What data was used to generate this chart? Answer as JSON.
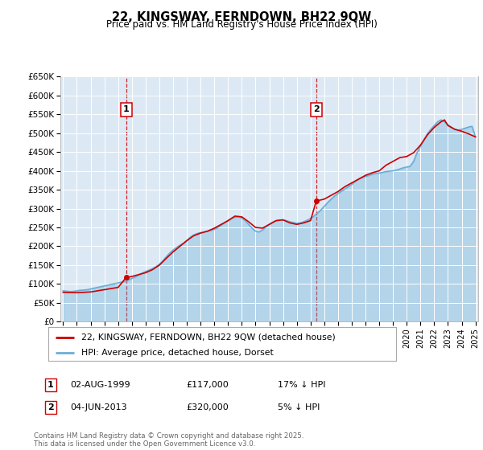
{
  "title": "22, KINGSWAY, FERNDOWN, BH22 9QW",
  "subtitle": "Price paid vs. HM Land Registry's House Price Index (HPI)",
  "ylabel_ticks": [
    "£0",
    "£50K",
    "£100K",
    "£150K",
    "£200K",
    "£250K",
    "£300K",
    "£350K",
    "£400K",
    "£450K",
    "£500K",
    "£550K",
    "£600K",
    "£650K"
  ],
  "ylim": [
    0,
    650000
  ],
  "ytick_values": [
    0,
    50000,
    100000,
    150000,
    200000,
    250000,
    300000,
    350000,
    400000,
    450000,
    500000,
    550000,
    600000,
    650000
  ],
  "xlim_years": [
    1995,
    2025
  ],
  "xtick_years": [
    1995,
    1996,
    1997,
    1998,
    1999,
    2000,
    2001,
    2002,
    2003,
    2004,
    2005,
    2006,
    2007,
    2008,
    2009,
    2010,
    2011,
    2012,
    2013,
    2014,
    2015,
    2016,
    2017,
    2018,
    2019,
    2020,
    2021,
    2022,
    2023,
    2024,
    2025
  ],
  "hpi_color": "#6baed6",
  "price_color": "#cc0000",
  "background_color": "#dce9f5",
  "grid_color": "#ffffff",
  "transaction1_year": 1999.58,
  "transaction1_price": 117000,
  "transaction1_label": "1",
  "transaction1_date": "02-AUG-1999",
  "transaction1_hpi_pct": "17% ↓ HPI",
  "transaction2_year": 2013.42,
  "transaction2_price": 320000,
  "transaction2_label": "2",
  "transaction2_date": "04-JUN-2013",
  "transaction2_hpi_pct": "5% ↓ HPI",
  "legend_price_label": "22, KINGSWAY, FERNDOWN, BH22 9QW (detached house)",
  "legend_hpi_label": "HPI: Average price, detached house, Dorset",
  "footer": "Contains HM Land Registry data © Crown copyright and database right 2025.\nThis data is licensed under the Open Government Licence v3.0.",
  "hpi_data": [
    [
      1995.0,
      82000
    ],
    [
      1995.25,
      81000
    ],
    [
      1995.5,
      80000
    ],
    [
      1995.75,
      80500
    ],
    [
      1996.0,
      82000
    ],
    [
      1996.25,
      83500
    ],
    [
      1996.5,
      84000
    ],
    [
      1996.75,
      85000
    ],
    [
      1997.0,
      87000
    ],
    [
      1997.25,
      89000
    ],
    [
      1997.5,
      91000
    ],
    [
      1997.75,
      93000
    ],
    [
      1998.0,
      95000
    ],
    [
      1998.25,
      97000
    ],
    [
      1998.5,
      99000
    ],
    [
      1998.75,
      101000
    ],
    [
      1999.0,
      103000
    ],
    [
      1999.25,
      105000
    ],
    [
      1999.5,
      107000
    ],
    [
      1999.75,
      111000
    ],
    [
      2000.0,
      115000
    ],
    [
      2000.25,
      119000
    ],
    [
      2000.5,
      124000
    ],
    [
      2000.75,
      129000
    ],
    [
      2001.0,
      133000
    ],
    [
      2001.25,
      137000
    ],
    [
      2001.5,
      141000
    ],
    [
      2001.75,
      146000
    ],
    [
      2002.0,
      152000
    ],
    [
      2002.25,
      161000
    ],
    [
      2002.5,
      172000
    ],
    [
      2002.75,
      182000
    ],
    [
      2003.0,
      190000
    ],
    [
      2003.25,
      197000
    ],
    [
      2003.5,
      203000
    ],
    [
      2003.75,
      208000
    ],
    [
      2004.0,
      215000
    ],
    [
      2004.25,
      224000
    ],
    [
      2004.5,
      230000
    ],
    [
      2004.75,
      234000
    ],
    [
      2005.0,
      236000
    ],
    [
      2005.25,
      238000
    ],
    [
      2005.5,
      240000
    ],
    [
      2005.75,
      242000
    ],
    [
      2006.0,
      245000
    ],
    [
      2006.25,
      250000
    ],
    [
      2006.5,
      256000
    ],
    [
      2006.75,
      262000
    ],
    [
      2007.0,
      268000
    ],
    [
      2007.25,
      274000
    ],
    [
      2007.5,
      277000
    ],
    [
      2007.75,
      278000
    ],
    [
      2008.0,
      275000
    ],
    [
      2008.25,
      268000
    ],
    [
      2008.5,
      258000
    ],
    [
      2008.75,
      248000
    ],
    [
      2009.0,
      240000
    ],
    [
      2009.25,
      238000
    ],
    [
      2009.5,
      243000
    ],
    [
      2009.75,
      252000
    ],
    [
      2010.0,
      258000
    ],
    [
      2010.25,
      264000
    ],
    [
      2010.5,
      268000
    ],
    [
      2010.75,
      270000
    ],
    [
      2011.0,
      270000
    ],
    [
      2011.25,
      268000
    ],
    [
      2011.5,
      265000
    ],
    [
      2011.75,
      263000
    ],
    [
      2012.0,
      261000
    ],
    [
      2012.25,
      262000
    ],
    [
      2012.5,
      265000
    ],
    [
      2012.75,
      269000
    ],
    [
      2013.0,
      274000
    ],
    [
      2013.25,
      280000
    ],
    [
      2013.5,
      288000
    ],
    [
      2013.75,
      296000
    ],
    [
      2014.0,
      306000
    ],
    [
      2014.25,
      316000
    ],
    [
      2014.5,
      325000
    ],
    [
      2014.75,
      333000
    ],
    [
      2015.0,
      340000
    ],
    [
      2015.25,
      346000
    ],
    [
      2015.5,
      352000
    ],
    [
      2015.75,
      358000
    ],
    [
      2016.0,
      364000
    ],
    [
      2016.25,
      372000
    ],
    [
      2016.5,
      378000
    ],
    [
      2016.75,
      382000
    ],
    [
      2017.0,
      385000
    ],
    [
      2017.25,
      388000
    ],
    [
      2017.5,
      391000
    ],
    [
      2017.75,
      393000
    ],
    [
      2018.0,
      394000
    ],
    [
      2018.25,
      396000
    ],
    [
      2018.5,
      398000
    ],
    [
      2018.75,
      399000
    ],
    [
      2019.0,
      400000
    ],
    [
      2019.25,
      402000
    ],
    [
      2019.5,
      405000
    ],
    [
      2019.75,
      408000
    ],
    [
      2020.0,
      410000
    ],
    [
      2020.25,
      412000
    ],
    [
      2020.5,
      425000
    ],
    [
      2020.75,
      448000
    ],
    [
      2021.0,
      465000
    ],
    [
      2021.25,
      482000
    ],
    [
      2021.5,
      498000
    ],
    [
      2021.75,
      510000
    ],
    [
      2022.0,
      520000
    ],
    [
      2022.25,
      530000
    ],
    [
      2022.5,
      535000
    ],
    [
      2022.75,
      530000
    ],
    [
      2023.0,
      522000
    ],
    [
      2023.25,
      516000
    ],
    [
      2023.5,
      510000
    ],
    [
      2023.75,
      508000
    ],
    [
      2024.0,
      510000
    ],
    [
      2024.25,
      513000
    ],
    [
      2024.5,
      516000
    ],
    [
      2024.75,
      518000
    ],
    [
      2025.0,
      490000
    ]
  ],
  "price_data": [
    [
      1995.0,
      78000
    ],
    [
      1995.5,
      77500
    ],
    [
      1996.0,
      77000
    ],
    [
      1996.5,
      78000
    ],
    [
      1997.0,
      79000
    ],
    [
      1997.5,
      82000
    ],
    [
      1998.0,
      85000
    ],
    [
      1998.5,
      88000
    ],
    [
      1999.0,
      91000
    ],
    [
      1999.58,
      117000
    ],
    [
      2000.0,
      120000
    ],
    [
      2000.5,
      125000
    ],
    [
      2001.0,
      130000
    ],
    [
      2001.5,
      138000
    ],
    [
      2002.0,
      150000
    ],
    [
      2002.5,
      168000
    ],
    [
      2003.0,
      185000
    ],
    [
      2003.5,
      200000
    ],
    [
      2004.0,
      215000
    ],
    [
      2004.5,
      228000
    ],
    [
      2005.0,
      235000
    ],
    [
      2005.5,
      240000
    ],
    [
      2006.0,
      248000
    ],
    [
      2006.5,
      258000
    ],
    [
      2007.0,
      268000
    ],
    [
      2007.5,
      280000
    ],
    [
      2008.0,
      278000
    ],
    [
      2008.5,
      265000
    ],
    [
      2009.0,
      250000
    ],
    [
      2009.5,
      248000
    ],
    [
      2010.0,
      258000
    ],
    [
      2010.5,
      268000
    ],
    [
      2011.0,
      270000
    ],
    [
      2011.5,
      262000
    ],
    [
      2012.0,
      258000
    ],
    [
      2012.5,
      262000
    ],
    [
      2013.0,
      268000
    ],
    [
      2013.42,
      320000
    ],
    [
      2014.0,
      325000
    ],
    [
      2014.5,
      335000
    ],
    [
      2015.0,
      345000
    ],
    [
      2015.5,
      358000
    ],
    [
      2016.0,
      368000
    ],
    [
      2016.5,
      378000
    ],
    [
      2017.0,
      388000
    ],
    [
      2017.5,
      395000
    ],
    [
      2018.0,
      400000
    ],
    [
      2018.5,
      415000
    ],
    [
      2019.0,
      425000
    ],
    [
      2019.5,
      435000
    ],
    [
      2020.0,
      438000
    ],
    [
      2020.5,
      448000
    ],
    [
      2021.0,
      468000
    ],
    [
      2021.5,
      495000
    ],
    [
      2022.0,
      515000
    ],
    [
      2022.5,
      530000
    ],
    [
      2022.75,
      535000
    ],
    [
      2023.0,
      520000
    ],
    [
      2023.5,
      510000
    ],
    [
      2024.0,
      505000
    ],
    [
      2024.5,
      498000
    ],
    [
      2025.0,
      490000
    ]
  ]
}
